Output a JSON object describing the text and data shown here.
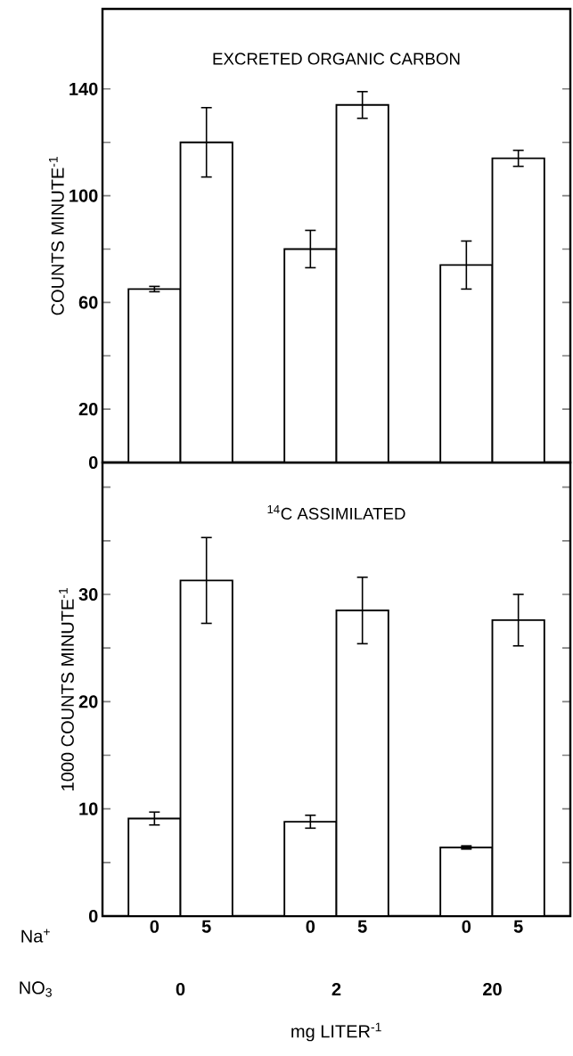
{
  "chart_data": [
    {
      "type": "bar",
      "title": "EXCRETED ORGANIC CARBON",
      "ylabel": "COUNTS MINUTE$^{-1}$",
      "categories": [
        "0",
        "5",
        null,
        "0",
        "5",
        null,
        "0",
        "5"
      ],
      "values": [
        65,
        120,
        null,
        80,
        134,
        null,
        74,
        114
      ],
      "errors": [
        1,
        13,
        null,
        7,
        5,
        null,
        9,
        3
      ],
      "color": "#ffffff",
      "ylim": [
        0,
        170
      ],
      "yticks": [
        0,
        20,
        {
          "value": 40,
          "label": null
        },
        60,
        {
          "value": 80,
          "label": null
        },
        100,
        {
          "value": 120,
          "label": null
        },
        140
      ],
      "tick_labels": "y"
    },
    {
      "type": "bar",
      "title": "$^{14}$C ASSIMILATED",
      "ylabel": "1000 COUNTS MINUTE$^{-1}$",
      "xlabel": "mg LITER$^{-1}$",
      "categories": [
        "0",
        "5",
        null,
        "0",
        "5",
        null,
        "0",
        "5"
      ],
      "values": [
        9.1,
        31.3,
        null,
        8.8,
        28.5,
        null,
        6.4,
        27.6
      ],
      "errors": [
        0.6,
        4,
        null,
        0.6,
        3.1,
        null,
        0.15,
        2.4
      ],
      "color": "#ffffff",
      "ylim": [
        0,
        42.3
      ],
      "yticks": [
        0,
        {
          "value": 5,
          "label": null
        },
        10,
        {
          "value": 15,
          "label": null
        },
        20,
        {
          "value": 25,
          "label": null
        },
        30,
        {
          "value": 35,
          "label": null
        },
        {
          "value": 40,
          "label": null
        }
      ],
      "annotations": [
        "Na$^{+}$",
        "NO$_{3}$",
        "0",
        "2",
        "20"
      ]
    }
  ]
}
